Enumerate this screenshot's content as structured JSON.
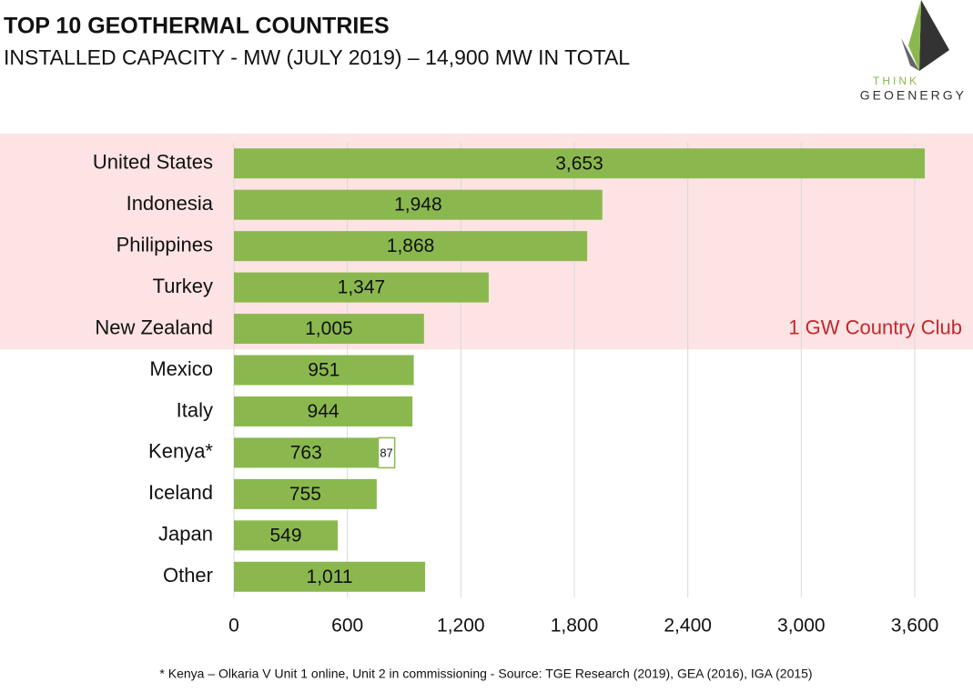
{
  "chart_data": {
    "type": "barh",
    "title": "TOP 10 GEOTHERMAL COUNTRIES",
    "subtitle": "INSTALLED CAPACITY - MW (JULY 2019) – 14,900 MW IN TOTAL",
    "logo": [
      "THINK",
      "GEOENERGY"
    ],
    "footnote": "* Kenya – Olkaria V Unit 1 online, Unit 2 in commissioning -  Source: TGE Research (2019), GEA (2016), IGA (2015)",
    "categories": [
      "United States",
      "Indonesia",
      "Philippines",
      "Turkey",
      "New Zealand",
      "Mexico",
      "Italy",
      "Kenya*",
      "Iceland",
      "Japan",
      "Other"
    ],
    "series": [
      {
        "color": "#8ab84e",
        "values": [
          3653,
          1948,
          1868,
          1347,
          1005,
          951,
          944,
          763,
          755,
          549,
          1011
        ],
        "value_labels": [
          "3,653",
          "1,948",
          "1,868",
          "1,347",
          "1,005",
          "951",
          "944",
          "763",
          "755",
          "549",
          "1,011"
        ]
      },
      {
        "color": "#ffffff",
        "values": [
          null,
          null,
          null,
          null,
          null,
          null,
          null,
          87,
          null,
          null,
          null
        ]
      }
    ],
    "xlim": [
      0,
      3600
    ],
    "xticks": [
      0,
      600,
      {
        "value": 1200,
        "label": "1,200"
      },
      {
        "value": 1800,
        "label": "1,800"
      },
      {
        "value": 2400,
        "label": "2,400"
      },
      {
        "value": 3000,
        "label": "3,000"
      },
      {
        "value": 3600,
        "label": "3,600"
      }
    ],
    "grid": true,
    "annotation": {
      "text": "1 GW Country Club",
      "first": 0,
      "last": 4,
      "color": "#c0282d"
    }
  }
}
